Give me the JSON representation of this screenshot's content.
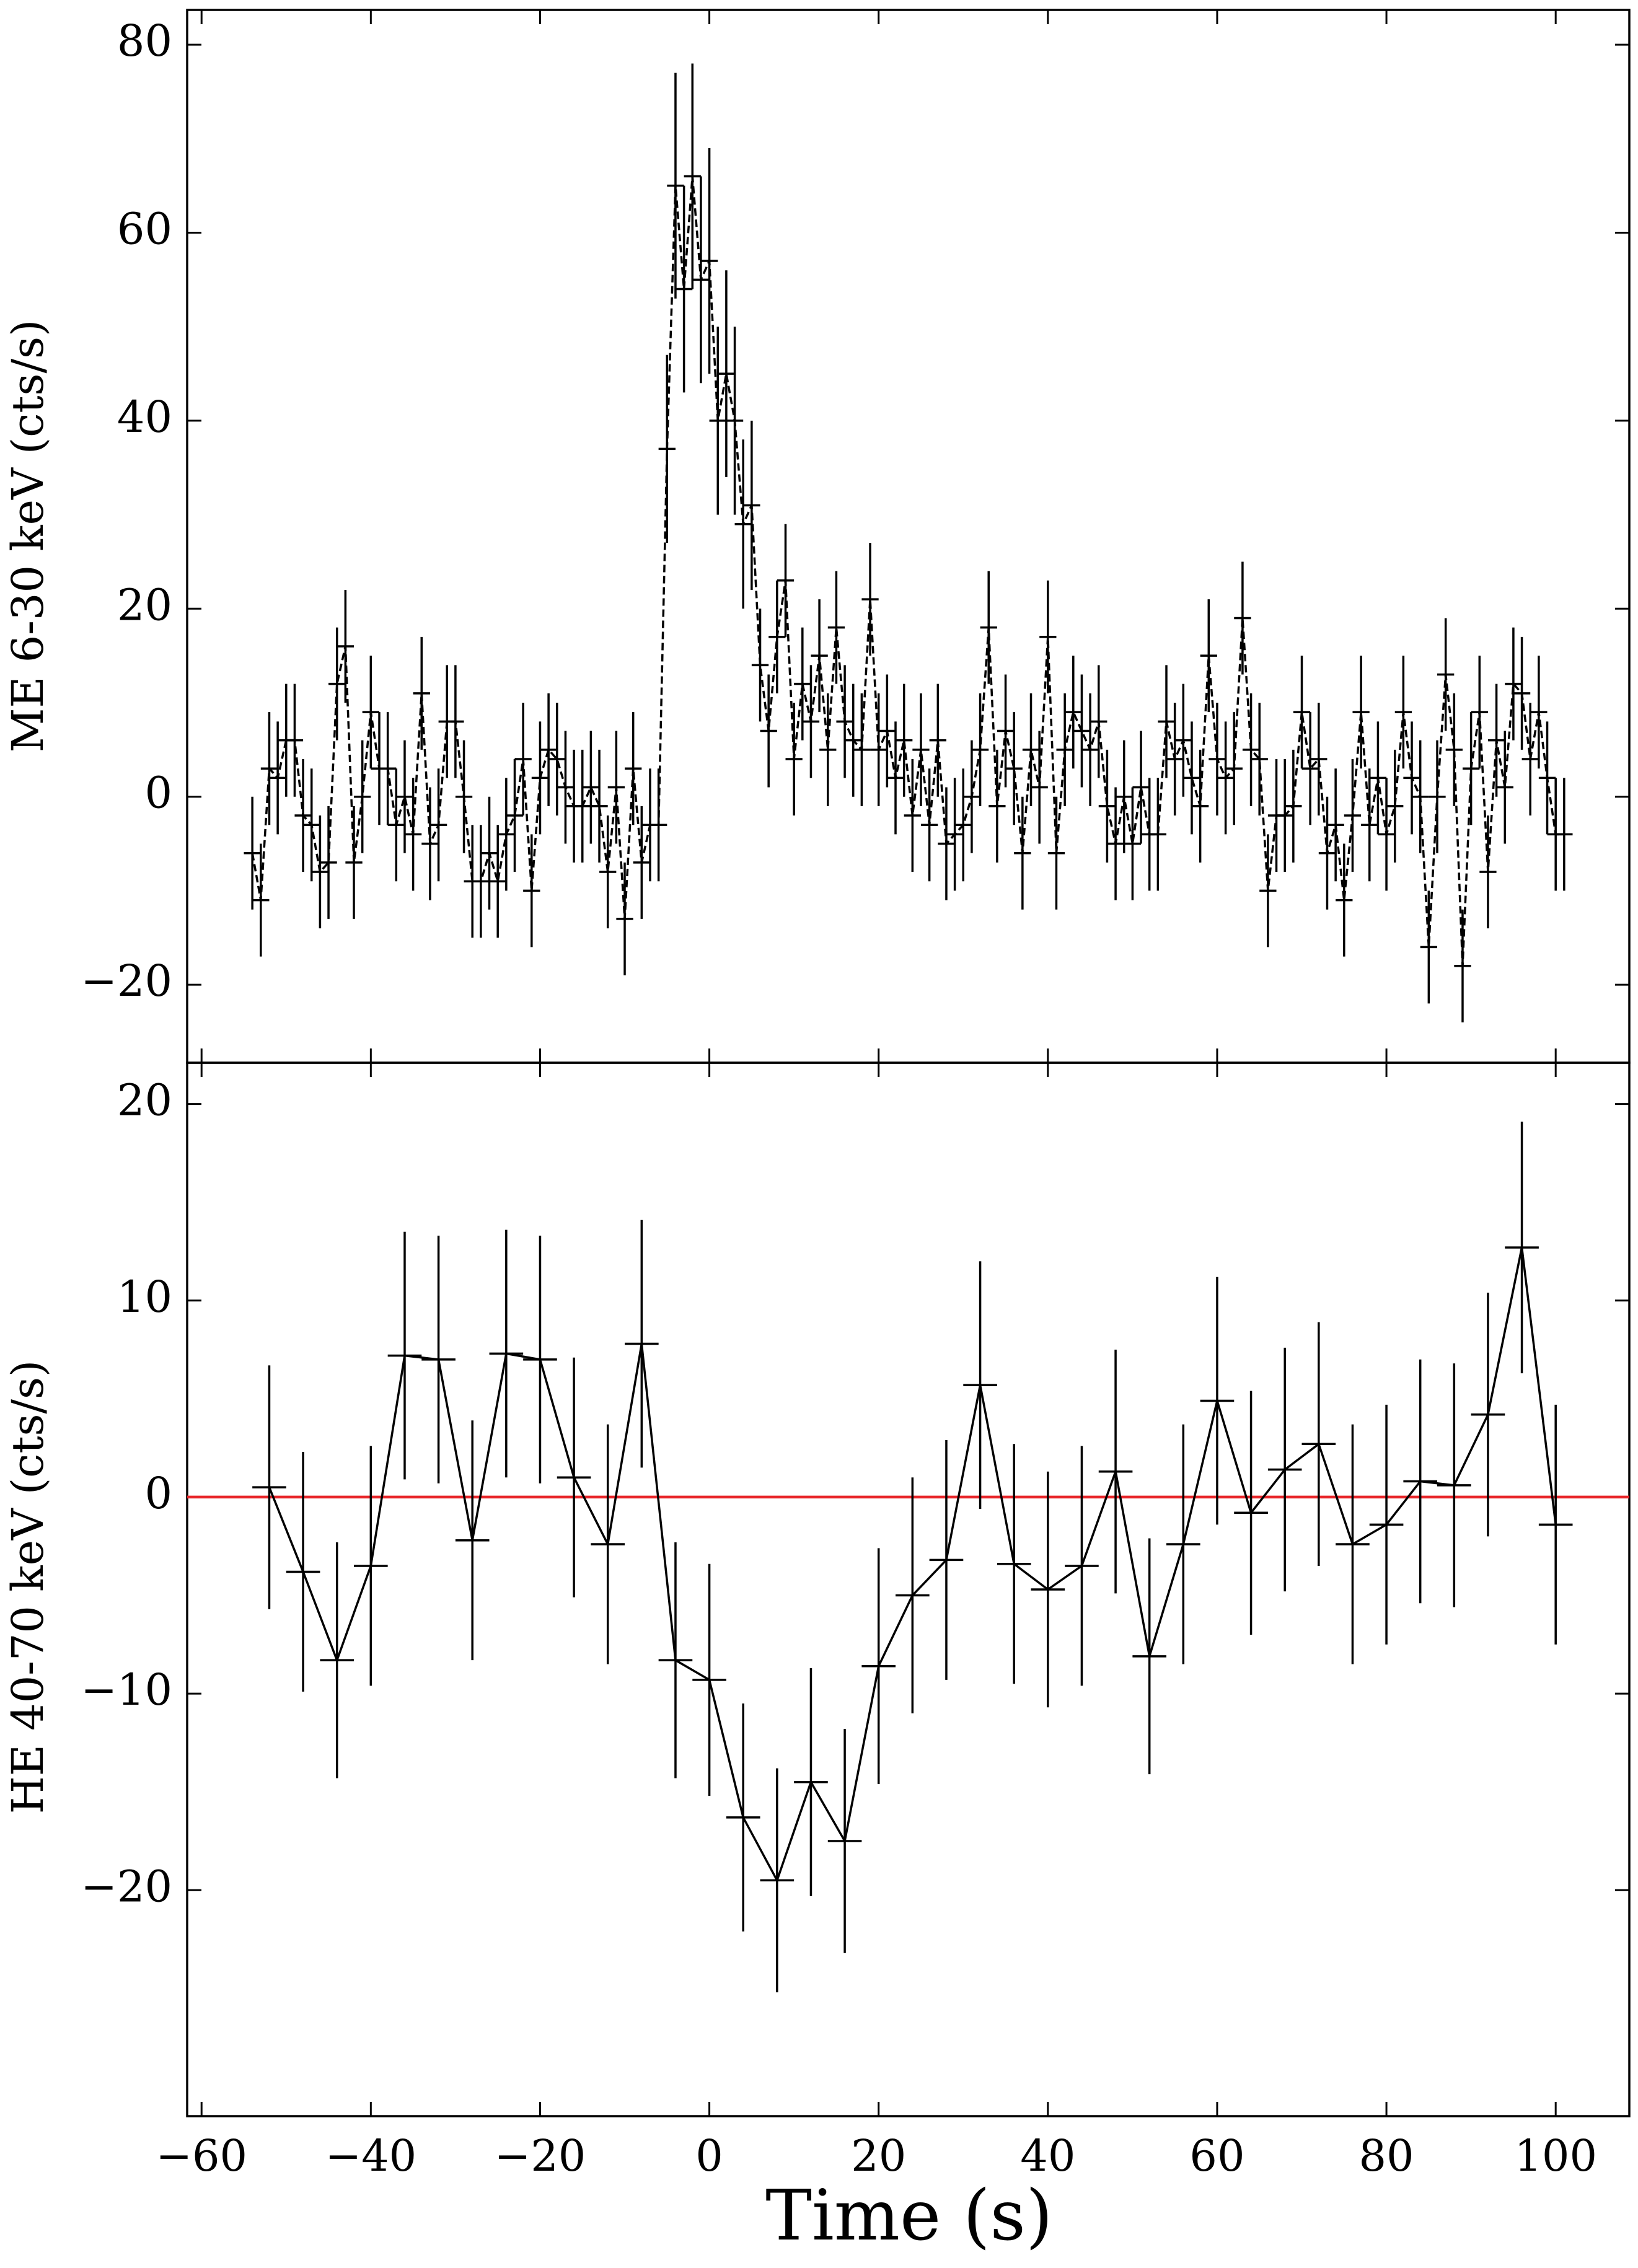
{
  "chart_data": [
    {
      "type": "errorbar-line",
      "ylabel": "ME 6-30 keV (cts/s)",
      "color": "#000000",
      "line_style": "dashed",
      "xlim": [
        -61.7,
        108.7
      ],
      "xticks": [
        -60,
        -40,
        -20,
        0,
        20,
        40,
        60,
        80,
        100
      ],
      "ylim": [
        -28.3,
        83.7
      ],
      "yticks": [
        {
          "value": -20,
          "label": "−20"
        },
        0,
        20,
        40,
        60,
        80
      ],
      "xerr": 1,
      "x": [
        -54,
        -53,
        -52,
        -51,
        -50,
        -49,
        -48,
        -47,
        -46,
        -45,
        -44,
        -43,
        -42,
        -41,
        -40,
        -39,
        -38,
        -37,
        -36,
        -35,
        -34,
        -33,
        -32,
        -31,
        -30,
        -29,
        -28,
        -27,
        -26,
        -25,
        -24,
        -23,
        -22,
        -21,
        -20,
        -19,
        -18,
        -17,
        -16,
        -15,
        -14,
        -13,
        -12,
        -11,
        -10,
        -9,
        -8,
        -7,
        -6,
        -5,
        -4,
        -3,
        -2,
        -1,
        0,
        1,
        2,
        3,
        4,
        5,
        6,
        7,
        8,
        9,
        10,
        11,
        12,
        13,
        14,
        15,
        16,
        17,
        18,
        19,
        20,
        21,
        22,
        23,
        24,
        25,
        26,
        27,
        28,
        29,
        30,
        31,
        32,
        33,
        34,
        35,
        36,
        37,
        38,
        39,
        40,
        41,
        42,
        43,
        44,
        45,
        46,
        47,
        48,
        49,
        50,
        51,
        52,
        53,
        54,
        55,
        56,
        57,
        58,
        59,
        60,
        61,
        62,
        63,
        64,
        65,
        66,
        67,
        68,
        69,
        70,
        71,
        72,
        73,
        74,
        75,
        76,
        77,
        78,
        79,
        80,
        81,
        82,
        83,
        84,
        85,
        86,
        87,
        88,
        89,
        90,
        91,
        92,
        93,
        94,
        95,
        96,
        97,
        98,
        99,
        100,
        101
      ],
      "values": [
        -6,
        -11,
        3,
        2,
        6,
        6,
        -2,
        -3,
        -8,
        -7,
        12,
        16,
        -7,
        0,
        9,
        3,
        3,
        -3,
        0,
        -4,
        11,
        -5,
        -3,
        8,
        8,
        0,
        -9,
        -9,
        -6,
        -9,
        -4,
        -2,
        4,
        -10,
        2,
        5,
        4,
        1,
        -1,
        -1,
        1,
        -1,
        -8,
        1,
        -13,
        3,
        -7,
        -3,
        -3,
        37,
        65,
        54,
        66,
        55,
        57,
        40,
        45,
        40,
        29,
        31,
        14,
        7,
        17,
        23,
        4,
        12,
        8,
        15,
        5,
        18,
        8,
        6,
        5,
        21,
        5,
        7,
        2,
        6,
        -2,
        5,
        -3,
        6,
        -5,
        -4,
        -3,
        0,
        5,
        18,
        -1,
        7,
        3,
        -6,
        5,
        1,
        17,
        -6,
        5,
        9,
        7,
        5,
        8,
        -1,
        -5,
        0,
        -5,
        1,
        -4,
        -4,
        8,
        4,
        6,
        2,
        -1,
        15,
        4,
        2,
        3,
        19,
        5,
        4,
        -10,
        -2,
        -2,
        -1,
        9,
        3,
        4,
        -6,
        -3,
        -11,
        -2,
        9,
        -3,
        2,
        -4,
        -1,
        9,
        2,
        0,
        -16,
        0,
        13,
        5,
        -18,
        3,
        9,
        -8,
        6,
        1,
        12,
        11,
        4,
        9,
        2,
        -4,
        -4
      ],
      "errors": [
        6,
        6,
        6,
        6,
        6,
        6,
        6,
        6,
        6,
        6,
        6,
        6,
        6,
        6,
        6,
        6,
        6,
        6,
        6,
        6,
        6,
        6,
        6,
        6,
        6,
        6,
        6,
        6,
        6,
        6,
        6,
        6,
        6,
        6,
        6,
        6,
        6,
        6,
        6,
        6,
        6,
        6,
        6,
        6,
        6,
        6,
        6,
        6,
        6,
        10,
        12,
        11,
        12,
        11,
        12,
        10,
        11,
        10,
        9,
        9,
        6,
        6,
        6,
        6,
        6,
        6,
        6,
        6,
        6,
        6,
        6,
        6,
        6,
        6,
        6,
        6,
        6,
        6,
        6,
        6,
        6,
        6,
        6,
        6,
        6,
        6,
        6,
        6,
        6,
        6,
        6,
        6,
        6,
        6,
        6,
        6,
        6,
        6,
        6,
        6,
        6,
        6,
        6,
        6,
        6,
        6,
        6,
        6,
        6,
        6,
        6,
        6,
        6,
        6,
        6,
        6,
        6,
        6,
        6,
        6,
        6,
        6,
        6,
        6,
        6,
        6,
        6,
        6,
        6,
        6,
        6,
        6,
        6,
        6,
        6,
        6,
        6,
        6,
        6,
        6,
        6,
        6,
        6,
        6,
        6,
        6,
        6,
        6,
        6,
        6,
        6,
        6,
        6,
        6,
        6,
        6
      ]
    },
    {
      "type": "errorbar-line",
      "ylabel": "HE 40-70 keV (cts/s)",
      "xlabel": "Time (s)",
      "color": "#000000",
      "line_style": "solid",
      "xlim": [
        -61.7,
        108.7
      ],
      "xticks": [
        {
          "value": -60,
          "label": "−60"
        },
        {
          "value": -40,
          "label": "−40"
        },
        {
          "value": -20,
          "label": "−20"
        },
        0,
        20,
        40,
        60,
        80,
        100
      ],
      "ylim": [
        -31.5,
        22.1
      ],
      "yticks": [
        {
          "value": -20,
          "label": "−20"
        },
        {
          "value": -10,
          "label": "−10"
        },
        0,
        10,
        20
      ],
      "hline": 0,
      "hline_color": "#e8262a",
      "xerr": 2,
      "x": [
        -52,
        -48,
        -44,
        -40,
        -36,
        -32,
        -28,
        -24,
        -20,
        -16,
        -12,
        -8,
        -4,
        0,
        4,
        8,
        12,
        16,
        20,
        24,
        28,
        32,
        36,
        40,
        44,
        48,
        52,
        56,
        60,
        64,
        68,
        72,
        76,
        80,
        84,
        88,
        92,
        96,
        100
      ],
      "values": [
        0.5,
        -3.8,
        -8.3,
        -3.5,
        7.2,
        7.0,
        -2.2,
        7.3,
        7.0,
        1.0,
        -2.4,
        7.8,
        -8.3,
        -9.3,
        -16.3,
        -19.5,
        -14.5,
        -17.5,
        -8.6,
        -5.0,
        -3.2,
        5.7,
        -3.4,
        -4.7,
        -3.5,
        1.3,
        -8.1,
        -2.4,
        4.9,
        -0.8,
        1.4,
        2.7,
        -2.4,
        -1.4,
        0.8,
        0.6,
        4.2,
        12.7,
        -1.4
      ],
      "errors": [
        6.2,
        6.1,
        6.0,
        6.1,
        6.3,
        6.3,
        6.1,
        6.3,
        6.3,
        6.1,
        6.1,
        6.3,
        6.0,
        5.9,
        5.8,
        5.7,
        5.8,
        5.7,
        6.0,
        6.0,
        6.1,
        6.3,
        6.1,
        6.0,
        6.1,
        6.2,
        6.0,
        6.1,
        6.3,
        6.2,
        6.2,
        6.2,
        6.1,
        6.1,
        6.2,
        6.2,
        6.2,
        6.4,
        6.1
      ]
    }
  ]
}
